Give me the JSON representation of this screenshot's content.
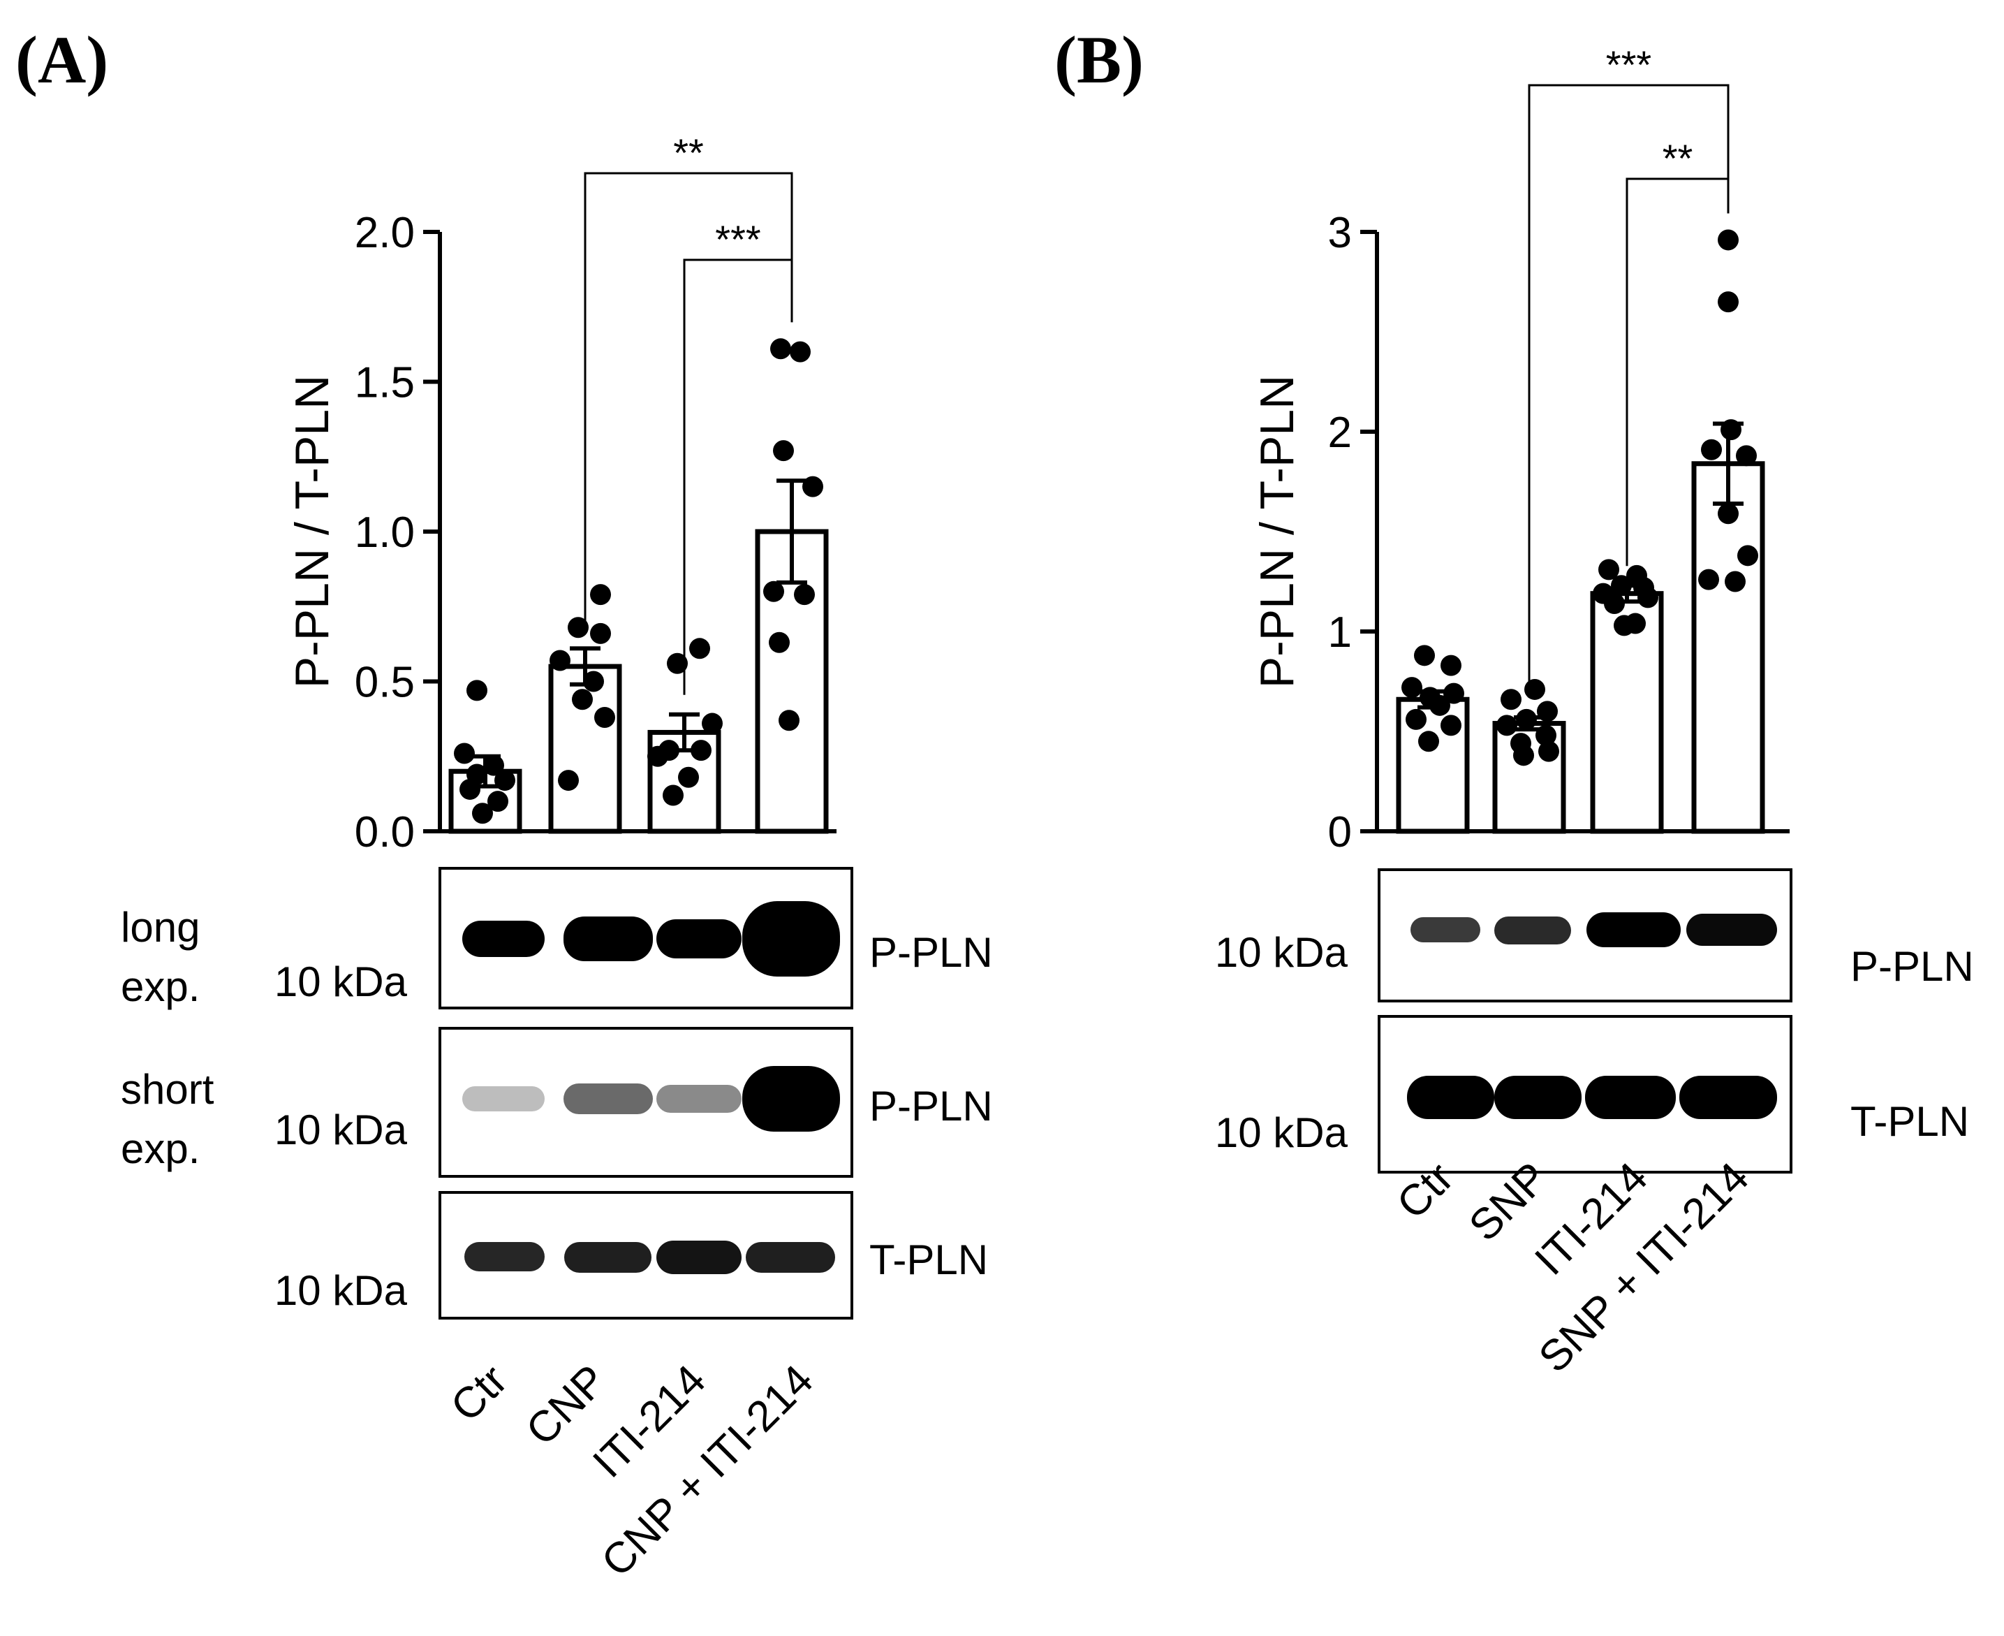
{
  "panels": [
    {
      "panel_label": "(A)",
      "blot": {
        "strips": [
          {
            "left_note": [
              "long",
              "exp."
            ],
            "kda": "10 kDa",
            "band": "P-PLN",
            "intensity": [
              0.55,
              0.75,
              0.62,
              1.0
            ]
          },
          {
            "left_note": [
              "short",
              "exp."
            ],
            "kda": "10 kDa",
            "band": "P-PLN",
            "intensity": [
              0.25,
              0.45,
              0.38,
              0.95
            ]
          },
          {
            "left_note": [],
            "kda": "10 kDa",
            "band": "T-PLN",
            "intensity": [
              0.7,
              0.72,
              0.75,
              0.72
            ]
          }
        ]
      }
    },
    {
      "panel_label": "(B)",
      "blot": {
        "strips": [
          {
            "left_note": [],
            "kda": "10 kDa",
            "band": "P-PLN",
            "intensity": [
              0.45,
              0.55,
              0.8,
              0.8
            ]
          },
          {
            "left_note": [],
            "kda": "10 kDa",
            "band": "T-PLN",
            "intensity": [
              0.95,
              0.95,
              0.95,
              0.95
            ]
          }
        ]
      }
    }
  ],
  "chart_data": [
    {
      "type": "bar",
      "title": "",
      "xlabel": "",
      "ylabel": "P-PLN / T-PLN",
      "categories": [
        "Ctr",
        "CNP",
        "ITI-214",
        "CNP + ITI-214"
      ],
      "ylim": [
        0,
        2.0
      ],
      "yticks": [
        "0.0",
        "0.5",
        "1.0",
        "1.5",
        "2.0"
      ],
      "ytick_values": [
        0,
        0.5,
        1.0,
        1.5,
        2.0
      ],
      "series": [
        {
          "values": [
            0.2,
            0.55,
            0.33,
            1.0
          ],
          "sem": [
            0.05,
            0.06,
            0.06,
            0.17
          ],
          "points": [
            [
              0.47,
              0.26,
              0.22,
              0.19,
              0.17,
              0.14,
              0.1,
              0.06
            ],
            [
              0.79,
              0.68,
              0.66,
              0.57,
              0.5,
              0.44,
              0.38,
              0.17
            ],
            [
              0.61,
              0.56,
              0.36,
              0.27,
              0.27,
              0.25,
              0.18,
              0.12
            ],
            [
              1.61,
              1.6,
              1.27,
              1.15,
              0.8,
              0.79,
              0.63,
              0.37
            ]
          ]
        }
      ],
      "significance": [
        {
          "from": 1,
          "to": 3,
          "label": "**"
        },
        {
          "from": 2,
          "to": 3,
          "label": "***"
        }
      ],
      "grid": false,
      "legend": "none"
    },
    {
      "type": "bar",
      "title": "",
      "xlabel": "",
      "ylabel": "P-PLN / T-PLN",
      "categories": [
        "Ctr",
        "SNP",
        "ITI-214",
        "SNP + ITI-214"
      ],
      "ylim": [
        0,
        3
      ],
      "yticks": [
        "0",
        "1",
        "2",
        "3"
      ],
      "ytick_values": [
        0,
        1,
        2,
        3
      ],
      "series": [
        {
          "values": [
            0.66,
            0.54,
            1.19,
            1.84
          ],
          "sem": [
            0.04,
            0.03,
            0.04,
            0.2
          ],
          "points": [
            [
              0.88,
              0.83,
              0.72,
              0.69,
              0.67,
              0.63,
              0.56,
              0.53,
              0.45
            ],
            [
              0.71,
              0.66,
              0.6,
              0.56,
              0.53,
              0.48,
              0.44,
              0.4,
              0.38
            ],
            [
              1.31,
              1.28,
              1.23,
              1.22,
              1.19,
              1.17,
              1.14,
              1.04,
              1.03
            ],
            [
              2.96,
              2.65,
              2.01,
              1.91,
              1.88,
              1.59,
              1.38,
              1.26,
              1.25
            ]
          ]
        }
      ],
      "significance": [
        {
          "from": 1,
          "to": 3,
          "label": "***"
        },
        {
          "from": 2,
          "to": 3,
          "label": "**"
        }
      ],
      "grid": false,
      "legend": "none"
    }
  ]
}
